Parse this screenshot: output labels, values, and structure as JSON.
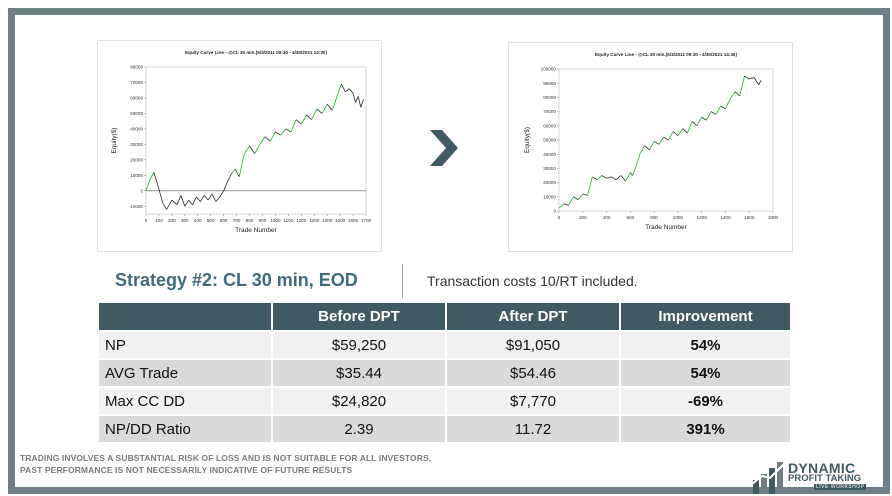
{
  "charts": [
    {
      "type": "line",
      "title": "Equity Curve Line - @CL 30 min.(5/3/2011 09:30 - 4/30/2021 14:30)",
      "xlabel": "Trade Number",
      "ylabel": "Equity($)",
      "xticks": [
        0,
        100,
        200,
        300,
        400,
        500,
        600,
        700,
        800,
        900,
        1000,
        1100,
        1200,
        1300,
        1400,
        1500,
        1600,
        1700
      ],
      "yticks": [
        -10000,
        0,
        10000,
        20000,
        30000,
        40000,
        50000,
        60000,
        70000,
        80000
      ],
      "xlim": [
        0,
        1700
      ],
      "ylim": [
        -15000,
        80000
      ],
      "x": [
        0,
        30,
        60,
        90,
        110,
        130,
        160,
        200,
        240,
        270,
        300,
        330,
        360,
        390,
        420,
        450,
        480,
        510,
        540,
        570,
        600,
        630,
        660,
        690,
        720,
        760,
        800,
        840,
        880,
        920,
        960,
        1000,
        1040,
        1080,
        1120,
        1160,
        1200,
        1240,
        1280,
        1320,
        1360,
        1400,
        1440,
        1480,
        1510,
        1540,
        1570,
        1600,
        1620,
        1640,
        1660,
        1680
      ],
      "y": [
        0,
        7000,
        12000,
        4000,
        -2000,
        -8000,
        -12000,
        -6000,
        -9000,
        -3000,
        -10000,
        -6000,
        -9000,
        -4000,
        -7000,
        -3000,
        -6000,
        -2000,
        -7000,
        -4000,
        0,
        6000,
        11000,
        14000,
        9000,
        24000,
        29000,
        24000,
        30000,
        35000,
        32000,
        38000,
        36000,
        40000,
        38000,
        46000,
        43000,
        49000,
        46000,
        53000,
        50000,
        56000,
        52000,
        62000,
        69000,
        64000,
        66000,
        63000,
        57000,
        61000,
        54000,
        59000
      ]
    },
    {
      "type": "line",
      "title": "Equity Curve Line - @CL 30 min.(5/3/2011 09:30 - 4/30/2021 14:30)",
      "xlabel": "Trade Number",
      "ylabel": "Equity($)",
      "xticks": [
        0,
        200,
        400,
        600,
        800,
        1000,
        1200,
        1400,
        1600,
        1800
      ],
      "yticks": [
        0,
        10000,
        20000,
        30000,
        40000,
        50000,
        60000,
        70000,
        80000,
        90000,
        100000
      ],
      "xlim": [
        0,
        1800
      ],
      "ylim": [
        0,
        100000
      ],
      "x": [
        0,
        40,
        80,
        120,
        160,
        200,
        240,
        280,
        320,
        360,
        400,
        440,
        480,
        520,
        560,
        600,
        620,
        650,
        680,
        720,
        760,
        800,
        840,
        880,
        920,
        960,
        1000,
        1040,
        1080,
        1120,
        1160,
        1200,
        1240,
        1280,
        1320,
        1360,
        1400,
        1440,
        1480,
        1520,
        1560,
        1600,
        1640,
        1680,
        1700
      ],
      "y": [
        2000,
        5000,
        4000,
        10000,
        8000,
        12000,
        11000,
        24000,
        22000,
        25000,
        23000,
        24000,
        22000,
        25000,
        21000,
        27000,
        25000,
        32000,
        40000,
        46000,
        43000,
        49000,
        47000,
        52000,
        50000,
        56000,
        53000,
        58000,
        55000,
        63000,
        60000,
        66000,
        64000,
        70000,
        68000,
        74000,
        72000,
        79000,
        84000,
        81000,
        95000,
        93000,
        94000,
        89000,
        92000
      ]
    }
  ],
  "heading": "Strategy #2: CL 30 min, EOD",
  "note": "Transaction costs 10/RT included.",
  "table": {
    "headers": [
      "",
      "Before DPT",
      "After DPT",
      "Improvement"
    ],
    "rows": [
      {
        "metric": "NP",
        "before": "$59,250",
        "after": "$91,050",
        "improvement": "54%"
      },
      {
        "metric": "AVG Trade",
        "before": "$35.44",
        "after": "$54.46",
        "improvement": "54%"
      },
      {
        "metric": "Max CC DD",
        "before": "$24,820",
        "after": "$7,770",
        "improvement": "-69%"
      },
      {
        "metric": "NP/DD Ratio",
        "before": "2.39",
        "after": "11.72",
        "improvement": "391%"
      }
    ]
  },
  "disclaimer": {
    "line1": "TRADING INVOLVES A SUBSTANTIAL RISK OF LOSS AND IS NOT SUITABLE FOR ALL INVESTORS,",
    "line2": "PAST PERFORMANCE IS NOT NECESSARILY INDICATIVE OF FUTURE RESULTS"
  },
  "logo": {
    "line1": "DYNAMIC",
    "line2": "PROFIT TAKING",
    "line3": "LIVE WORKSHOP"
  },
  "colors": {
    "frame": "#6e7f86",
    "accent": "#3f6b7d",
    "header_bg": "#3f5a63",
    "curve_black": "#2a2a2a",
    "curve_green": "#21b321"
  },
  "icons": [
    "chevron-right-icon",
    "logo-bars-icon"
  ]
}
